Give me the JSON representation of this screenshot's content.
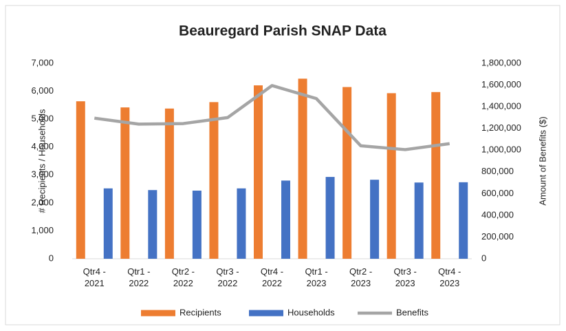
{
  "chart_data": {
    "type": "bar_line_combo",
    "title": "Beauregard Parish SNAP Data",
    "y_label": "# Recipients / Households",
    "y2_label": "Amount of Benefits ($)",
    "categories": [
      "Qtr4 - 2021",
      "Qtr1 - 2022",
      "Qtr2 - 2022",
      "Qtr3 - 2022",
      "Qtr4 - 2022",
      "Qtr1 - 2023",
      "Qtr2 - 2023",
      "Qtr3 - 2023",
      "Qtr4 - 2023"
    ],
    "series": [
      {
        "name": "Recipients",
        "type": "bar",
        "color": "#ed7d31",
        "values": [
          5640,
          5420,
          5380,
          5610,
          6210,
          6450,
          6150,
          5930,
          5970
        ]
      },
      {
        "name": "Households",
        "type": "bar",
        "color": "#4472c4",
        "values": [
          2520,
          2460,
          2440,
          2520,
          2800,
          2930,
          2830,
          2730,
          2740
        ]
      },
      {
        "name": "Benefits",
        "type": "line",
        "axis": "y2",
        "color": "#a5a5a5",
        "values": [
          1295000,
          1240000,
          1245000,
          1300000,
          1595000,
          1475000,
          1040000,
          1005000,
          1060000
        ]
      }
    ],
    "ylim": [
      0,
      7000
    ],
    "yticks": [
      0,
      {
        "value": 1000,
        "label": "1,000"
      },
      {
        "value": 2000,
        "label": "2,000"
      },
      {
        "value": 3000,
        "label": "3,000"
      },
      {
        "value": 4000,
        "label": "4,000"
      },
      {
        "value": 5000,
        "label": "5,000"
      },
      {
        "value": 6000,
        "label": "6,000"
      },
      {
        "value": 7000,
        "label": "7,000"
      }
    ],
    "y2lim": [
      0,
      1800000
    ],
    "y2ticks": [
      0,
      {
        "value": 200000,
        "label": "200,000"
      },
      {
        "value": 400000,
        "label": "400,000"
      },
      {
        "value": 600000,
        "label": "600,000"
      },
      {
        "value": 800000,
        "label": "800,000"
      },
      {
        "value": 1000000,
        "label": "1,000,000"
      },
      {
        "value": 1200000,
        "label": "1,200,000"
      },
      {
        "value": 1400000,
        "label": "1,400,000"
      },
      {
        "value": 1600000,
        "label": "1,600,000"
      },
      {
        "value": 1800000,
        "label": "1,800,000"
      }
    ],
    "legend": "bottom"
  }
}
